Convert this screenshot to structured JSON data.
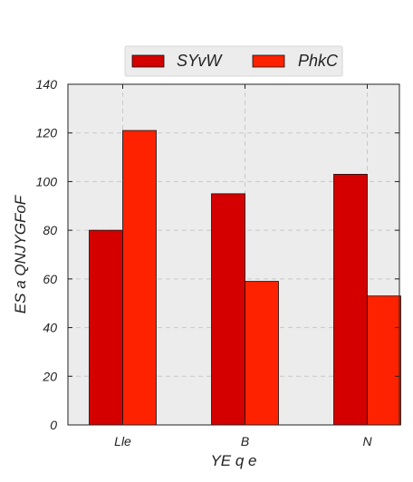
{
  "chart_data": {
    "type": "bar",
    "title": "",
    "xlabel": "YE q e",
    "ylabel": "ES a QNJYGFoF",
    "categories": [
      "Lle",
      "B",
      "N"
    ],
    "series": [
      {
        "name": "SYvW",
        "values": [
          80,
          95,
          103
        ],
        "color": "#d40000"
      },
      {
        "name": "PhkC",
        "values": [
          121,
          59,
          53
        ],
        "color": "#ff2200"
      }
    ],
    "ylim": [
      0,
      140
    ],
    "yticks": [
      0,
      20,
      40,
      60,
      80,
      100,
      120,
      140
    ],
    "grid": true,
    "legend_position": "top-center",
    "background": "#ececec"
  }
}
